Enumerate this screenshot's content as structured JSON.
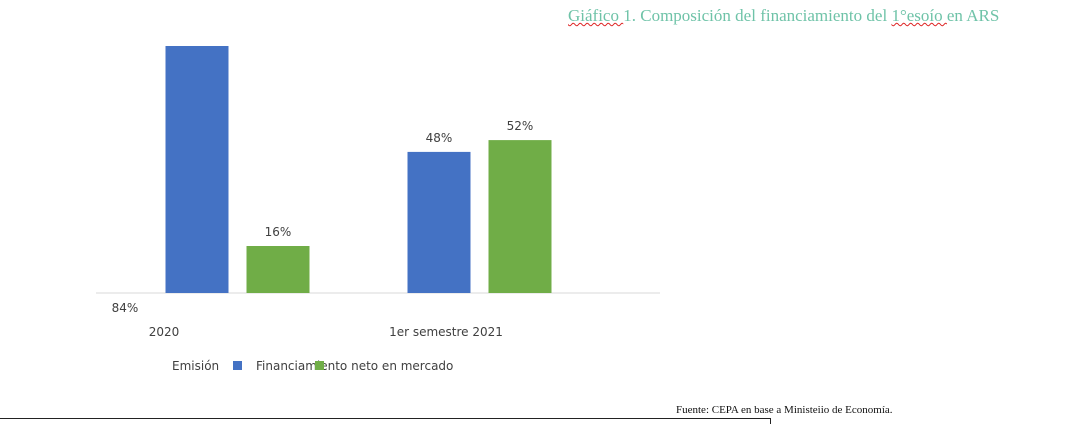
{
  "chart_data": {
    "type": "bar",
    "title": "Giáfico 1. Composición del financiamiento del 1°esoío en ARS",
    "categories": [
      "2020",
      "1er semestre 2021"
    ],
    "series": [
      {
        "name": "Emisión",
        "color": "#4472c4",
        "values": [
          84,
          48
        ],
        "labels": [
          "84%",
          "48%"
        ]
      },
      {
        "name": "Financiamiento neto en mercado",
        "color": "#70ad47",
        "values": [
          16,
          52
        ],
        "labels": [
          "16%",
          "52%"
        ]
      }
    ],
    "ylim": [
      0,
      84
    ],
    "grid": false,
    "legend_position": "bottom",
    "source": "Fuente: CEPA en base a Ministeiio de Economía."
  }
}
